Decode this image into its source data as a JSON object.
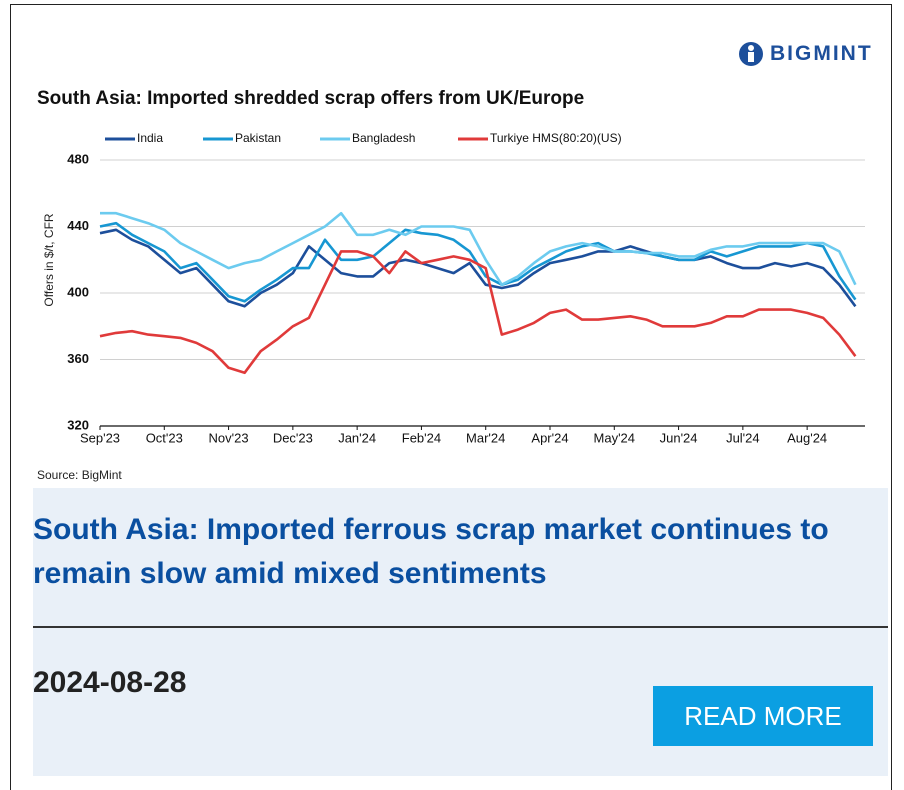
{
  "brand": "BIGMINT",
  "chart_data": {
    "type": "line",
    "title": "South Asia: Imported shredded scrap offers from UK/Europe",
    "y_label": "Offers in $/t, CFR",
    "source": "Source: BigMint",
    "x": [
      0,
      0.25,
      0.5,
      0.75,
      1,
      1.25,
      1.5,
      1.75,
      2,
      2.25,
      2.5,
      2.75,
      3,
      3.25,
      3.5,
      3.75,
      4,
      4.25,
      4.5,
      4.75,
      5,
      5.25,
      5.5,
      5.75,
      6,
      6.25,
      6.5,
      6.75,
      7,
      7.25,
      7.5,
      7.75,
      8,
      8.25,
      8.5,
      8.75,
      9,
      9.25,
      9.5,
      9.75,
      10,
      10.25,
      10.5,
      10.75,
      11,
      11.25,
      11.5,
      11.75
    ],
    "xlim": [
      0,
      11.9
    ],
    "xticks": [
      {
        "value": 0,
        "label": "Sep'23"
      },
      {
        "value": 1,
        "label": "Oct'23"
      },
      {
        "value": 2,
        "label": "Nov'23"
      },
      {
        "value": 3,
        "label": "Dec'23"
      },
      {
        "value": 4,
        "label": "Jan'24"
      },
      {
        "value": 5,
        "label": "Feb'24"
      },
      {
        "value": 6,
        "label": "Mar'24"
      },
      {
        "value": 7,
        "label": "Apr'24"
      },
      {
        "value": 8,
        "label": "May'24"
      },
      {
        "value": 9,
        "label": "Jun'24"
      },
      {
        "value": 10,
        "label": "Jul'24"
      },
      {
        "value": 11,
        "label": "Aug'24"
      }
    ],
    "ylim": [
      320,
      480
    ],
    "yticks": [
      320,
      360,
      400,
      440,
      480
    ],
    "grid": true,
    "series": [
      {
        "name": "India",
        "color": "#1d4f9b",
        "values": [
          436,
          438,
          432,
          428,
          420,
          412,
          415,
          405,
          395,
          392,
          400,
          405,
          412,
          428,
          420,
          412,
          410,
          410,
          418,
          420,
          418,
          415,
          412,
          418,
          405,
          403,
          405,
          412,
          418,
          420,
          422,
          425,
          425,
          428,
          425,
          422,
          420,
          420,
          422,
          418,
          415,
          415,
          418,
          416,
          418,
          415,
          405,
          392
        ]
      },
      {
        "name": "Pakistan",
        "color": "#1797d2",
        "values": [
          440,
          442,
          435,
          430,
          425,
          415,
          418,
          408,
          398,
          395,
          402,
          408,
          415,
          415,
          432,
          420,
          420,
          422,
          430,
          438,
          436,
          435,
          432,
          425,
          410,
          405,
          408,
          415,
          420,
          425,
          428,
          430,
          425,
          425,
          424,
          422,
          420,
          420,
          425,
          422,
          425,
          428,
          428,
          428,
          430,
          428,
          410,
          396
        ]
      },
      {
        "name": "Bangladesh",
        "color": "#6ccbef",
        "values": [
          448,
          448,
          445,
          442,
          438,
          430,
          425,
          420,
          415,
          418,
          420,
          425,
          430,
          435,
          440,
          448,
          435,
          435,
          438,
          435,
          440,
          440,
          440,
          438,
          420,
          405,
          410,
          418,
          425,
          428,
          430,
          428,
          425,
          425,
          424,
          424,
          422,
          422,
          426,
          428,
          428,
          430,
          430,
          430,
          430,
          430,
          425,
          405
        ]
      },
      {
        "name": "Turkiye HMS(80:20)(US)",
        "color": "#e03a3a",
        "values": [
          374,
          376,
          377,
          375,
          374,
          373,
          370,
          365,
          355,
          352,
          365,
          372,
          380,
          385,
          405,
          425,
          425,
          422,
          412,
          425,
          418,
          420,
          422,
          420,
          415,
          375,
          378,
          382,
          388,
          390,
          384,
          384,
          385,
          386,
          384,
          380,
          380,
          380,
          382,
          386,
          386,
          390,
          390,
          390,
          388,
          385,
          375,
          362
        ]
      }
    ]
  },
  "article": {
    "headline": "South Asia: Imported ferrous scrap market continues to remain slow amid mixed sentiments",
    "date": "2024-08-28",
    "button": "READ MORE"
  }
}
